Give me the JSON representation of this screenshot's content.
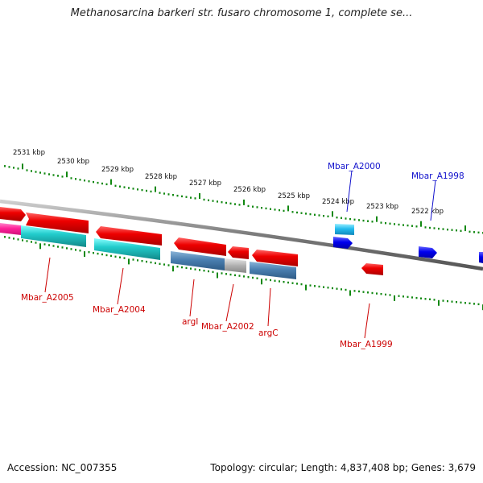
{
  "title": "Methanosarcina barkeri str. fusaro chromosome 1, complete se...",
  "footer": {
    "accession": "Accession: NC_007355",
    "topology": "Topology: circular; Length: 4,837,408 bp; Genes: 3,679"
  },
  "kbp_labels": [
    "2531 kbp",
    "2530 kbp",
    "2529 kbp",
    "2528 kbp",
    "2527 kbp",
    "2526 kbp",
    "2525 kbp",
    "2524 kbp",
    "2523 kbp",
    "2522 kbp"
  ],
  "gene_labels": {
    "mbar_a2005": "Mbar_A2005",
    "mbar_a2004": "Mbar_A2004",
    "argi": "argI",
    "mbar_a2002": "Mbar_A2002",
    "argc": "argC",
    "mbar_a1999": "Mbar_A1999",
    "mbar_a2000": "Mbar_A2000",
    "mbar_a1998": "Mbar_A1998"
  },
  "colors": {
    "backbone": "#8a8a8a",
    "gene_red": "#ee0000",
    "gene_cyan": "#22cccc",
    "gene_steel": "#4a7fb0",
    "gene_gray": "#b0b0b0",
    "gene_blue": "#0000ee",
    "gene_lightblue": "#22bbee",
    "gene_magenta": "#ff2299",
    "tick_green": "#118811",
    "label_red": "#cc0000",
    "label_blue": "#1010cc"
  }
}
